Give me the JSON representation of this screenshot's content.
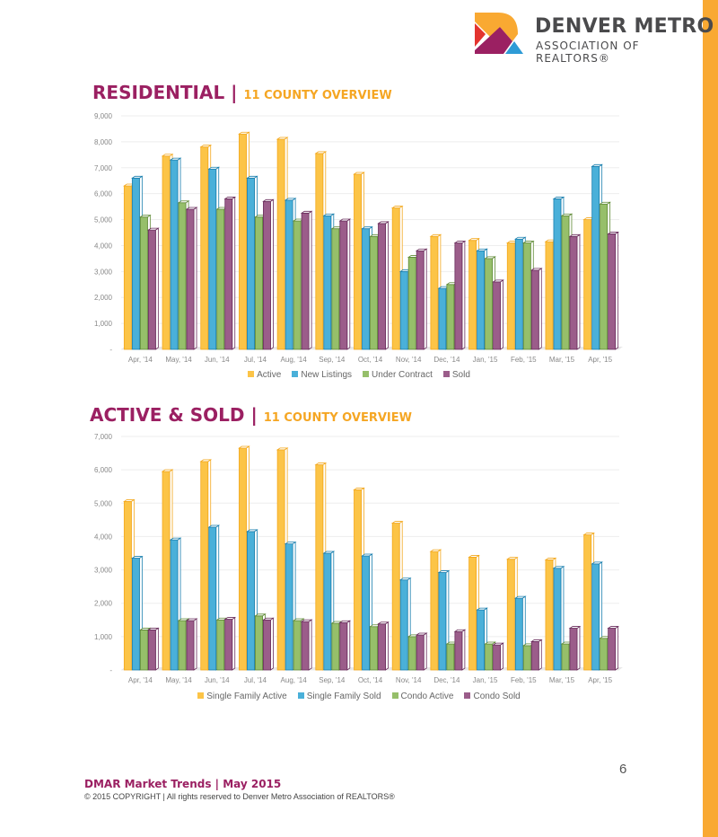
{
  "header": {
    "brand_line1": "DENVER METRO",
    "brand_line2": "ASSOCIATION OF REALTORS®",
    "accent": "#f9a932"
  },
  "section1": {
    "title": "RESIDENTIAL | ",
    "subtitle": "11 COUNTY OVERVIEW"
  },
  "section2": {
    "title": "ACTIVE & SOLD | ",
    "subtitle": "11 COUNTY OVERVIEW"
  },
  "footer": {
    "page_number": "6",
    "title": "DMAR Market Trends | May 2015",
    "copyright": "© 2015 COPYRIGHT | All rights reserved to Denver Metro Association of REALTORS®"
  },
  "chart_data": [
    {
      "type": "bar",
      "title": "RESIDENTIAL | 11 COUNTY OVERVIEW",
      "categories": [
        "Apr, '14",
        "May, '14",
        "Jun, '14",
        "Jul, '14",
        "Aug, '14",
        "Sep, '14",
        "Oct, '14",
        "Nov, '14",
        "Dec, '14",
        "Jan, '15",
        "Feb, '15",
        "Mar, '15",
        "Apr, '15"
      ],
      "yticks": [
        "-",
        "1,000",
        "2,000",
        "3,000",
        "4,000",
        "5,000",
        "6,000",
        "7,000",
        "8,000",
        "9,000"
      ],
      "ylim": [
        0,
        9000
      ],
      "grid": true,
      "legend_position": "bottom",
      "series": [
        {
          "name": "Active",
          "color": "#fcc447",
          "edge": "#f3a81d",
          "values": [
            6300,
            7450,
            7800,
            8300,
            8100,
            7550,
            6750,
            5450,
            4350,
            4200,
            4100,
            4150,
            5000
          ]
        },
        {
          "name": "New Listings",
          "color": "#4ab0d9",
          "edge": "#1a7fae",
          "values": [
            6600,
            7300,
            6950,
            6600,
            5750,
            5150,
            4650,
            3000,
            2350,
            3800,
            4250,
            5800,
            7050
          ]
        },
        {
          "name": "Under Contract",
          "color": "#96bf6a",
          "edge": "#5f8a36",
          "values": [
            5100,
            5650,
            5400,
            5100,
            4950,
            4650,
            4350,
            3550,
            2500,
            3500,
            4100,
            5150,
            5600
          ]
        },
        {
          "name": "Sold",
          "color": "#9b5d8a",
          "edge": "#6a2d5c",
          "values": [
            4600,
            5400,
            5800,
            5700,
            5250,
            4950,
            4850,
            3800,
            4100,
            2600,
            3050,
            4350,
            4450
          ]
        }
      ]
    },
    {
      "type": "bar",
      "title": "ACTIVE & SOLD | 11 COUNTY OVERVIEW",
      "categories": [
        "Apr, '14",
        "May, '14",
        "Jun, '14",
        "Jul, '14",
        "Aug, '14",
        "Sep, '14",
        "Oct, '14",
        "Nov, '14",
        "Dec, '14",
        "Jan, '15",
        "Feb, '15",
        "Mar, '15",
        "Apr, '15"
      ],
      "yticks": [
        "-",
        "1,000",
        "2,000",
        "3,000",
        "4,000",
        "5,000",
        "6,000",
        "7,000"
      ],
      "ylim": [
        0,
        7000
      ],
      "grid": true,
      "legend_position": "bottom",
      "series": [
        {
          "name": "Single Family Active",
          "color": "#fcc447",
          "edge": "#f3a81d",
          "values": [
            5050,
            5950,
            6250,
            6650,
            6600,
            6150,
            5400,
            4400,
            3550,
            3380,
            3320,
            3300,
            4050
          ]
        },
        {
          "name": "Single Family Sold",
          "color": "#4ab0d9",
          "edge": "#1a7fae",
          "values": [
            3350,
            3900,
            4280,
            4150,
            3780,
            3500,
            3420,
            2700,
            2920,
            1800,
            2150,
            3050,
            3180
          ]
        },
        {
          "name": "Condo Active",
          "color": "#96bf6a",
          "edge": "#5f8a36",
          "values": [
            1200,
            1480,
            1500,
            1620,
            1480,
            1400,
            1300,
            1000,
            780,
            780,
            730,
            780,
            950
          ]
        },
        {
          "name": "Condo Sold",
          "color": "#9b5d8a",
          "edge": "#6a2d5c",
          "values": [
            1200,
            1480,
            1520,
            1500,
            1450,
            1420,
            1380,
            1050,
            1150,
            750,
            850,
            1250,
            1250
          ]
        }
      ]
    }
  ]
}
